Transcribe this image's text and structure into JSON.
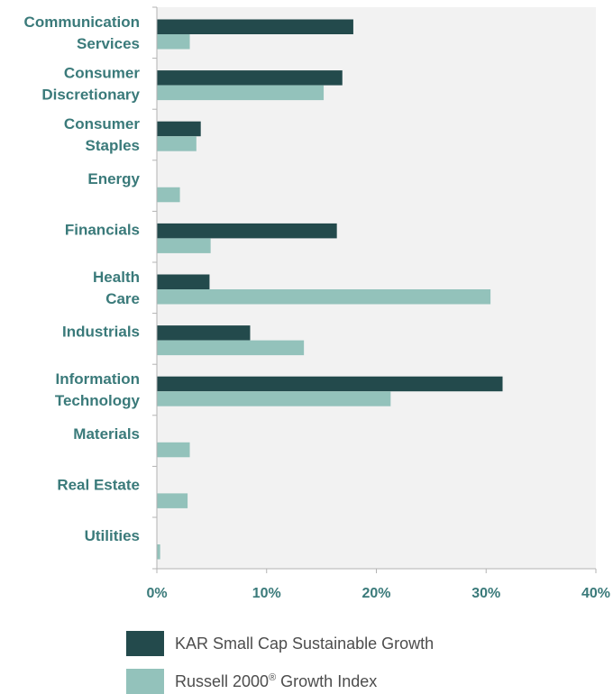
{
  "colors": {
    "series1": "#234a4c",
    "series2": "#93c2bb",
    "label": "#3a7a7a",
    "plot_bg": "#f2f2f2",
    "axis": "#b3b3b3",
    "legend_text": "#4d4d4d"
  },
  "chart_data": {
    "type": "bar",
    "orientation": "horizontal",
    "categories": [
      [
        "Communication",
        "Services"
      ],
      [
        "Consumer",
        "Discretionary"
      ],
      [
        "Consumer",
        "Staples"
      ],
      [
        "Energy"
      ],
      [
        "Financials"
      ],
      [
        "Health",
        "Care"
      ],
      [
        "Industrials"
      ],
      [
        "Information",
        "Technology"
      ],
      [
        "Materials"
      ],
      [
        "Real Estate"
      ],
      [
        "Utilities"
      ]
    ],
    "series": [
      {
        "name": "KAR Small Cap Sustainable Growth",
        "values": [
          17.9,
          16.9,
          4.0,
          0,
          16.4,
          4.8,
          8.5,
          31.5,
          0,
          0,
          0
        ]
      },
      {
        "name": "Russell 2000® Growth Index",
        "values": [
          3.0,
          15.2,
          3.6,
          2.1,
          4.9,
          30.4,
          13.4,
          21.3,
          3.0,
          2.8,
          0.3
        ]
      }
    ],
    "xlim": [
      0,
      40
    ],
    "xticks": [
      0,
      10,
      20,
      30,
      40
    ],
    "tick_suffix": "%",
    "legend_position": "bottom",
    "title": "",
    "xlabel": "",
    "ylabel": ""
  },
  "legend": {
    "item1": "KAR Small Cap Sustainable Growth",
    "item2_main": "Russell 2000",
    "item2_sup": "®",
    "item2_rest": " Growth Index"
  }
}
